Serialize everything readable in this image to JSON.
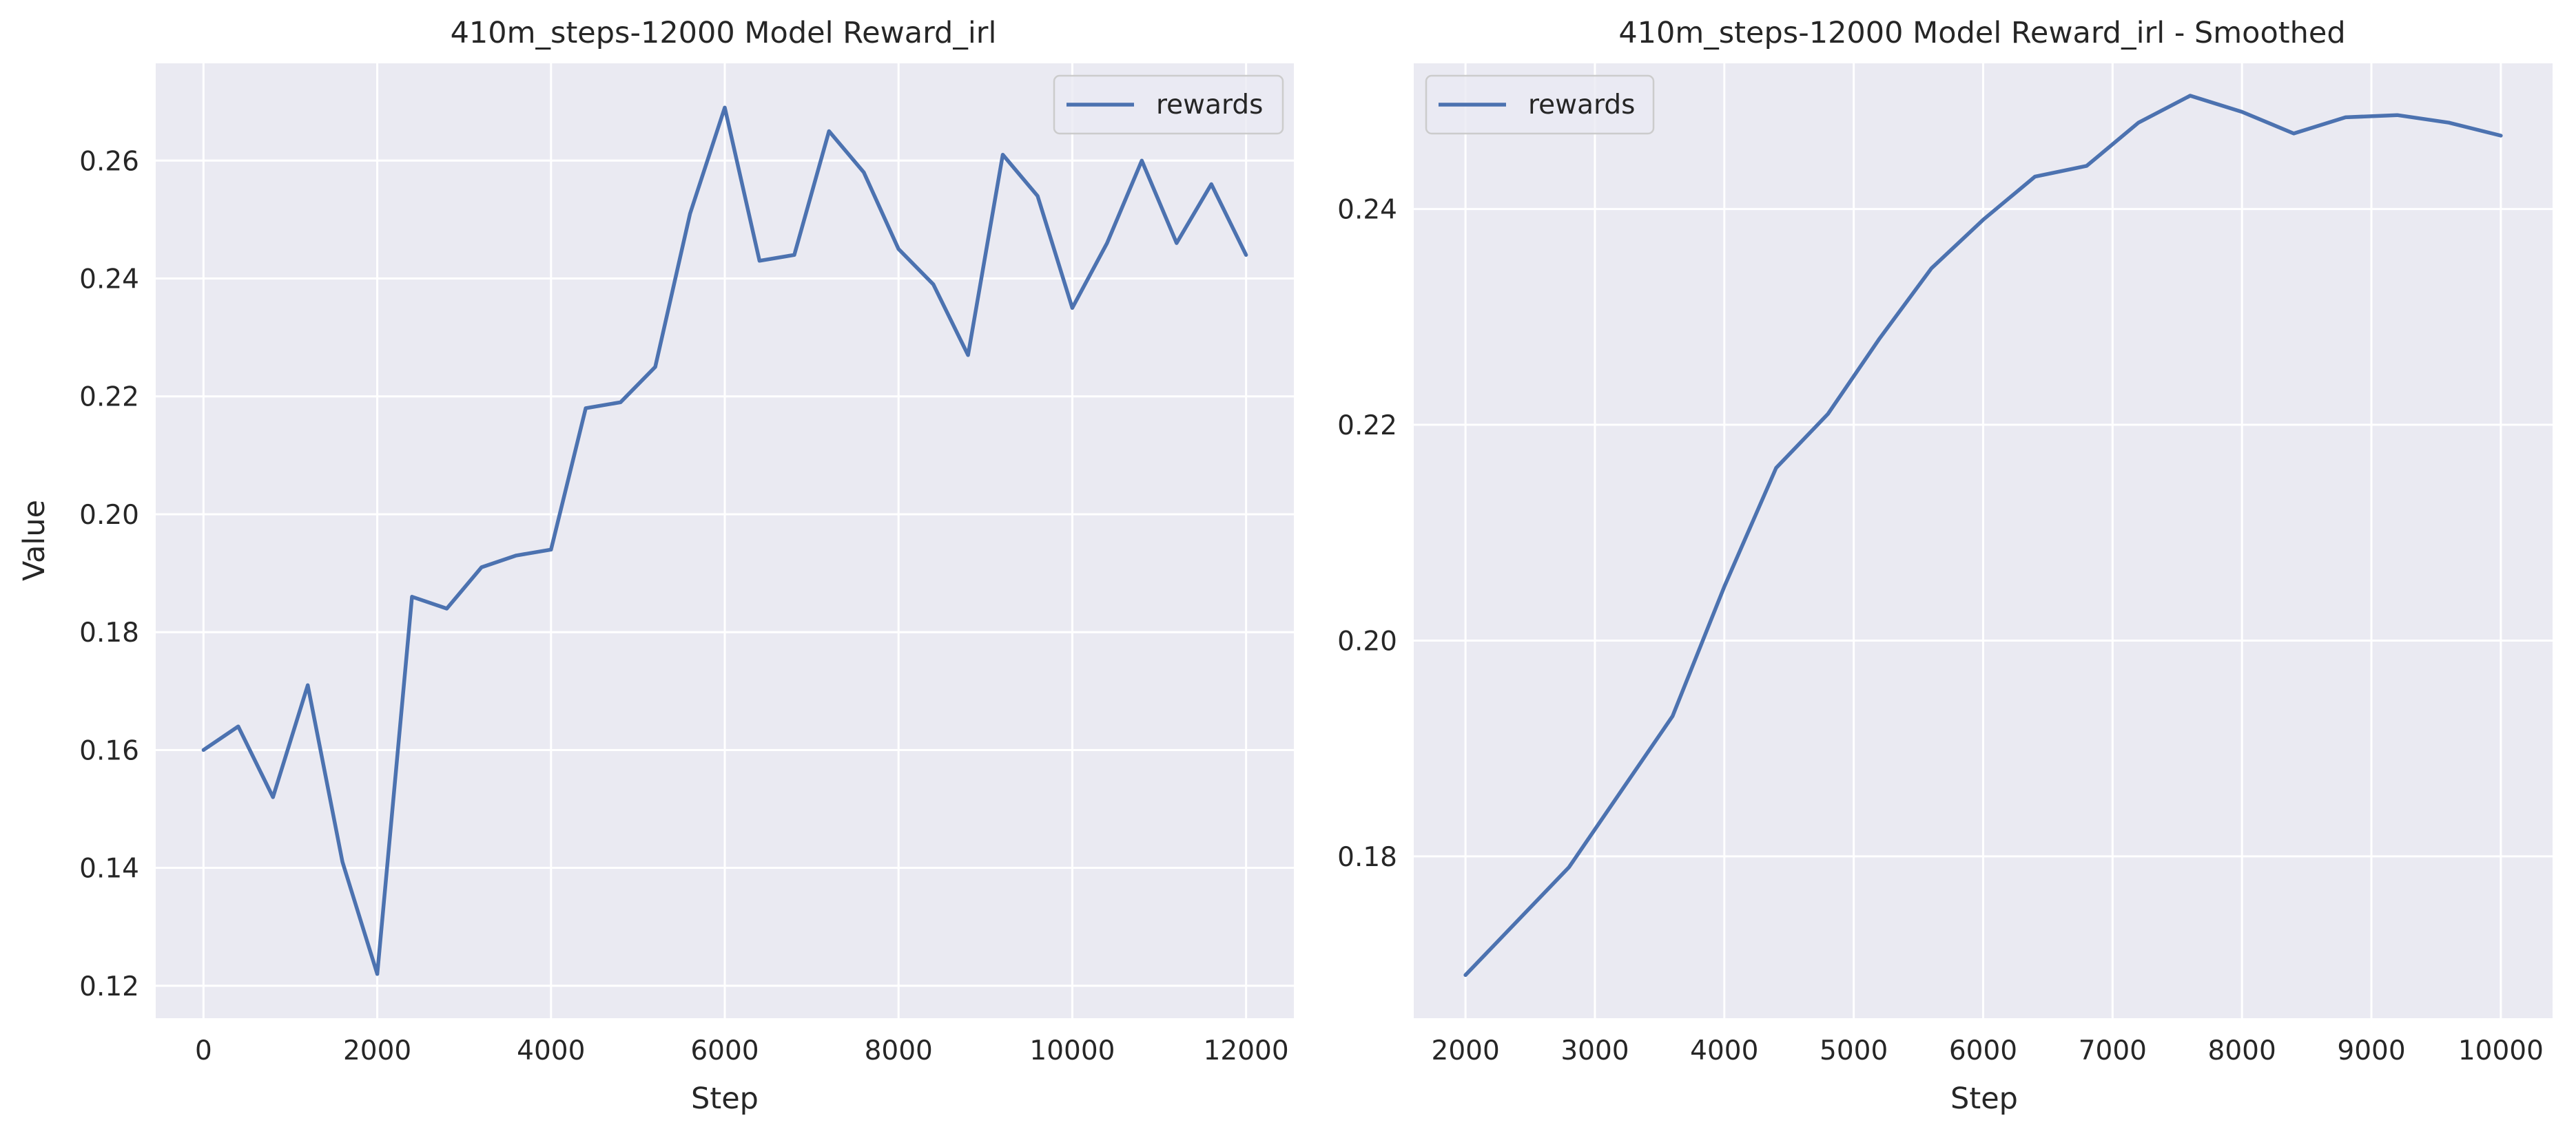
{
  "chart_data": [
    {
      "type": "line",
      "title": "410m_steps-12000 Model Reward_irl",
      "xlabel": "Step",
      "ylabel": "Value",
      "xlim": [
        -550,
        12550
      ],
      "ylim": [
        0.1145,
        0.2765
      ],
      "xticks": [
        0,
        2000,
        4000,
        6000,
        8000,
        10000,
        12000
      ],
      "xtick_labels": [
        "0",
        "2000",
        "4000",
        "6000",
        "8000",
        "10000",
        "12000"
      ],
      "yticks": [
        0.12,
        0.14,
        0.16,
        0.18,
        0.2,
        0.22,
        0.24,
        0.26
      ],
      "ytick_labels": [
        "0.12",
        "0.14",
        "0.16",
        "0.18",
        "0.20",
        "0.22",
        "0.24",
        "0.26"
      ],
      "grid": true,
      "legend": {
        "position": "upper right",
        "entries": [
          "rewards"
        ]
      },
      "series": [
        {
          "name": "rewards",
          "color": "#4c72b0",
          "x": [
            0,
            400,
            800,
            1200,
            1600,
            2000,
            2400,
            2800,
            3200,
            3600,
            4000,
            4400,
            4800,
            5200,
            5600,
            6000,
            6400,
            6800,
            7200,
            7600,
            8000,
            8400,
            8800,
            9200,
            9600,
            10000,
            10400,
            10800,
            11200,
            11600,
            12000
          ],
          "y": [
            0.16,
            0.164,
            0.152,
            0.171,
            0.141,
            0.122,
            0.186,
            0.184,
            0.191,
            0.193,
            0.194,
            0.218,
            0.219,
            0.225,
            0.251,
            0.269,
            0.243,
            0.244,
            0.265,
            0.258,
            0.245,
            0.239,
            0.227,
            0.261,
            0.254,
            0.235,
            0.246,
            0.26,
            0.246,
            0.256,
            0.244
          ]
        }
      ]
    },
    {
      "type": "line",
      "title": "410m_steps-12000 Model Reward_irl - Smoothed",
      "xlabel": "Step",
      "ylabel": "",
      "xlim": [
        1600,
        10400
      ],
      "ylim": [
        0.165,
        0.2535
      ],
      "xticks": [
        2000,
        3000,
        4000,
        5000,
        6000,
        7000,
        8000,
        9000,
        10000
      ],
      "xtick_labels": [
        "2000",
        "3000",
        "4000",
        "5000",
        "6000",
        "7000",
        "8000",
        "9000",
        "10000"
      ],
      "yticks": [
        0.18,
        0.2,
        0.22,
        0.24
      ],
      "ytick_labels": [
        "0.18",
        "0.20",
        "0.22",
        "0.24"
      ],
      "grid": true,
      "legend": {
        "position": "upper left",
        "entries": [
          "rewards"
        ]
      },
      "series": [
        {
          "name": "rewards",
          "color": "#4c72b0",
          "x": [
            2000,
            2400,
            2800,
            3200,
            3600,
            4000,
            4400,
            4800,
            5200,
            5600,
            6000,
            6400,
            6800,
            7200,
            7600,
            8000,
            8400,
            8800,
            9200,
            9600,
            10000
          ],
          "y": [
            0.169,
            0.174,
            0.179,
            0.186,
            0.193,
            0.205,
            0.216,
            0.221,
            0.228,
            0.2345,
            0.239,
            0.243,
            0.244,
            0.248,
            0.2505,
            0.249,
            0.247,
            0.2485,
            0.2487,
            0.248,
            0.2468
          ]
        }
      ]
    }
  ],
  "style": {
    "plot_background": "#eaeaf2",
    "grid_color": "#ffffff",
    "text_color": "#262626",
    "legend_edge": "#cccccc"
  }
}
